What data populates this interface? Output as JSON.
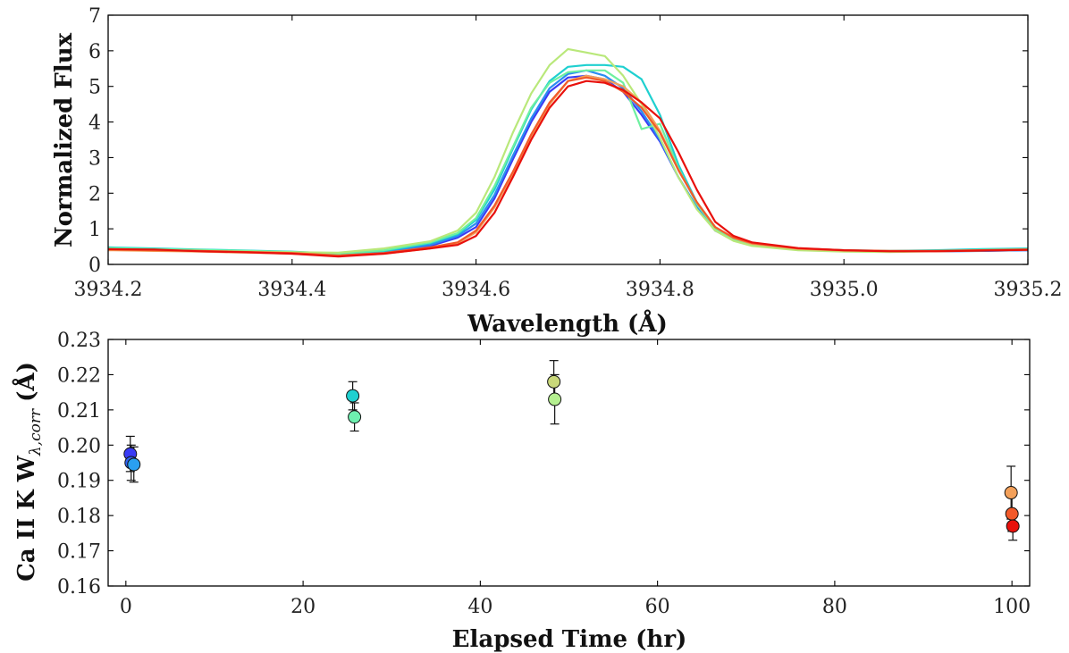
{
  "chart_data": [
    {
      "type": "line",
      "title": "",
      "xlabel": "Wavelength (Å)",
      "ylabel": "Normalized Flux",
      "xlim": [
        3934.2,
        3935.2
      ],
      "ylim": [
        0,
        7
      ],
      "x_ticks": [
        3934.2,
        3934.4,
        3934.6,
        3934.8,
        3935.0,
        3935.2
      ],
      "x_tick_labels": [
        "3934.2",
        "3934.4",
        "3934.6",
        "3934.8",
        "3935.0",
        "3935.2"
      ],
      "y_ticks": [
        0,
        1,
        2,
        3,
        4,
        5,
        6,
        7
      ],
      "y_tick_labels": [
        "0",
        "1",
        "2",
        "3",
        "4",
        "5",
        "6",
        "7"
      ],
      "grid": false,
      "x": [
        3934.2,
        3934.25,
        3934.3,
        3934.35,
        3934.4,
        3934.45,
        3934.5,
        3934.55,
        3934.58,
        3934.6,
        3934.62,
        3934.64,
        3934.66,
        3934.68,
        3934.7,
        3934.72,
        3934.74,
        3934.76,
        3934.78,
        3934.8,
        3934.82,
        3934.84,
        3934.86,
        3934.88,
        3934.9,
        3934.95,
        3935.0,
        3935.05,
        3935.1,
        3935.15,
        3935.2
      ],
      "series": [
        {
          "color": "#3a3cf5",
          "values": [
            0.45,
            0.42,
            0.4,
            0.37,
            0.34,
            0.28,
            0.36,
            0.52,
            0.75,
            1.05,
            1.85,
            2.95,
            4.0,
            4.85,
            5.25,
            5.3,
            5.2,
            4.85,
            4.2,
            3.45,
            2.45,
            1.6,
            0.95,
            0.7,
            0.55,
            0.42,
            0.38,
            0.37,
            0.37,
            0.38,
            0.4
          ]
        },
        {
          "color": "#2a8df0",
          "values": [
            0.44,
            0.42,
            0.4,
            0.36,
            0.33,
            0.27,
            0.35,
            0.55,
            0.8,
            1.15,
            1.95,
            3.05,
            4.1,
            4.95,
            5.35,
            5.45,
            5.3,
            4.95,
            4.3,
            3.5,
            2.45,
            1.6,
            0.95,
            0.7,
            0.55,
            0.42,
            0.38,
            0.37,
            0.37,
            0.38,
            0.4
          ]
        },
        {
          "color": "#1fd0d0",
          "values": [
            0.48,
            0.45,
            0.42,
            0.39,
            0.36,
            0.3,
            0.38,
            0.6,
            0.85,
            1.25,
            2.1,
            3.25,
            4.35,
            5.15,
            5.55,
            5.6,
            5.6,
            5.55,
            5.2,
            4.2,
            2.8,
            1.75,
            1.05,
            0.72,
            0.58,
            0.45,
            0.4,
            0.38,
            0.4,
            0.43,
            0.45
          ]
        },
        {
          "color": "#6ef0a0",
          "values": [
            0.46,
            0.43,
            0.41,
            0.38,
            0.35,
            0.3,
            0.4,
            0.62,
            0.88,
            1.3,
            2.2,
            3.3,
            4.4,
            5.1,
            5.4,
            5.45,
            5.45,
            5.1,
            3.8,
            3.95,
            2.7,
            1.7,
            1.0,
            0.7,
            0.55,
            0.43,
            0.38,
            0.37,
            0.38,
            0.41,
            0.43
          ]
        },
        {
          "color": "#b9e87a",
          "values": [
            0.42,
            0.4,
            0.38,
            0.36,
            0.34,
            0.33,
            0.45,
            0.65,
            0.95,
            1.45,
            2.45,
            3.7,
            4.8,
            5.6,
            6.05,
            5.95,
            5.85,
            5.3,
            4.5,
            3.55,
            2.45,
            1.55,
            0.95,
            0.66,
            0.52,
            0.4,
            0.36,
            0.35,
            0.37,
            0.4,
            0.42
          ]
        },
        {
          "color": "#f3a05a",
          "values": [
            0.4,
            0.38,
            0.36,
            0.33,
            0.3,
            0.24,
            0.3,
            0.45,
            0.6,
            0.9,
            1.6,
            2.55,
            3.6,
            4.5,
            5.15,
            5.3,
            5.2,
            5.0,
            4.55,
            3.75,
            2.65,
            1.75,
            1.05,
            0.74,
            0.58,
            0.44,
            0.39,
            0.37,
            0.37,
            0.39,
            0.41
          ]
        },
        {
          "color": "#f25a2a",
          "values": [
            0.42,
            0.4,
            0.38,
            0.35,
            0.32,
            0.25,
            0.32,
            0.48,
            0.62,
            0.95,
            1.65,
            2.6,
            3.65,
            4.55,
            5.15,
            5.25,
            5.15,
            4.85,
            4.4,
            3.7,
            2.65,
            1.75,
            1.05,
            0.75,
            0.6,
            0.45,
            0.4,
            0.38,
            0.38,
            0.4,
            0.42
          ]
        },
        {
          "color": "#e8100c",
          "values": [
            0.43,
            0.42,
            0.37,
            0.34,
            0.3,
            0.22,
            0.3,
            0.45,
            0.55,
            0.8,
            1.45,
            2.45,
            3.5,
            4.4,
            5.0,
            5.15,
            5.1,
            4.9,
            4.55,
            4.1,
            3.15,
            2.1,
            1.2,
            0.8,
            0.62,
            0.46,
            0.4,
            0.37,
            0.37,
            0.39,
            0.41
          ]
        }
      ]
    },
    {
      "type": "scatter",
      "title": "",
      "xlabel": "Elapsed Time (hr)",
      "ylabel": "Ca II K W",
      "ylabel_sub": "λ,corr",
      "ylabel_unit": "(Å)",
      "xlim": [
        -2,
        102
      ],
      "ylim": [
        0.16,
        0.23
      ],
      "x_ticks": [
        0,
        20,
        40,
        60,
        80,
        100
      ],
      "x_tick_labels": [
        "0",
        "20",
        "40",
        "60",
        "80",
        "100"
      ],
      "y_ticks": [
        0.16,
        0.17,
        0.18,
        0.19,
        0.2,
        0.21,
        0.22,
        0.23
      ],
      "y_tick_labels": [
        "0.16",
        "0.17",
        "0.18",
        "0.19",
        "0.20",
        "0.21",
        "0.22",
        "0.23"
      ],
      "grid": false,
      "points": [
        {
          "x": 0.5,
          "y": 0.1975,
          "err": 0.005,
          "color": "#3a3cf5"
        },
        {
          "x": 0.6,
          "y": 0.195,
          "err": 0.005,
          "color": "#2f63f2"
        },
        {
          "x": 0.9,
          "y": 0.1945,
          "err": 0.005,
          "color": "#2a9ff0"
        },
        {
          "x": 25.6,
          "y": 0.214,
          "err": 0.004,
          "color": "#1fd0d0"
        },
        {
          "x": 25.8,
          "y": 0.208,
          "err": 0.004,
          "color": "#6ef0b0"
        },
        {
          "x": 48.3,
          "y": 0.218,
          "err": 0.006,
          "color": "#c9d87a"
        },
        {
          "x": 48.4,
          "y": 0.213,
          "err": 0.007,
          "color": "#b5f090"
        },
        {
          "x": 99.9,
          "y": 0.1865,
          "err": 0.0075,
          "color": "#f3a05a"
        },
        {
          "x": 100.0,
          "y": 0.1805,
          "err": 0.005,
          "color": "#f25a2a"
        },
        {
          "x": 100.1,
          "y": 0.177,
          "err": 0.004,
          "color": "#e8100c"
        }
      ]
    }
  ]
}
